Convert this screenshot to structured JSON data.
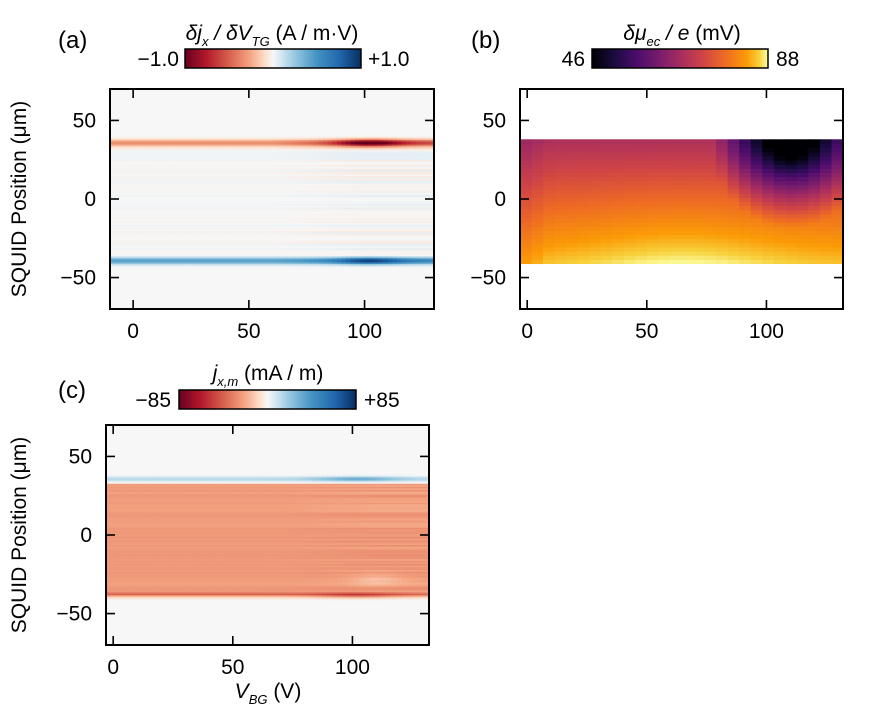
{
  "colors": {
    "div_neg": "#67001f",
    "div_mid": "#f7f7f7",
    "div_pos": "#053061",
    "inferno_low": "#000004",
    "inferno_high": "#fcffa4",
    "frame": "#000000"
  },
  "shared": {
    "ylabel": "SQUID Position (μm)",
    "xlabel_main": "V",
    "xlabel_sub": "BG",
    "xlabel_unit": " (V)"
  },
  "chart_data": [
    {
      "id": "a",
      "type": "heatmap",
      "panel_label": "(a)",
      "title_parts": [
        "δj",
        "x",
        " / δV",
        "TG",
        " (A / m·V)"
      ],
      "colorbar": {
        "min_label": "−1.0",
        "max_label": "+1.0",
        "min": -1.0,
        "max": 1.0,
        "cmap": "RdBu"
      },
      "xlim": [
        -10,
        130
      ],
      "ylim": [
        -70,
        70
      ],
      "xticks": [
        {
          "v": 0,
          "label": "0"
        },
        {
          "v": 50,
          "label": "50"
        },
        {
          "v": 100,
          "label": "100"
        }
      ],
      "yticks": [
        {
          "v": 50,
          "label": "50"
        },
        {
          "v": 0,
          "label": "0"
        },
        {
          "v": -50,
          "label": "−50"
        }
      ],
      "xlabel": "",
      "ylabel": "SQUID Position (μm)",
      "data_x_range": [
        -10,
        130
      ],
      "data_y_range": [
        -70,
        70
      ],
      "features": [
        {
          "y": 36,
          "sign": -1,
          "amplitude": [
            0.35,
            0.9
          ],
          "peak_x": 102,
          "desc": "top edge current"
        },
        {
          "y": -39,
          "sign": 1,
          "amplitude": [
            0.45,
            0.85
          ],
          "peak_x": 102,
          "desc": "bottom edge current"
        }
      ]
    },
    {
      "id": "b",
      "type": "heatmap",
      "panel_label": "(b)",
      "title_parts": [
        "δμ",
        "ec",
        " / e",
        "",
        " (mV)"
      ],
      "colorbar": {
        "min_label": "46",
        "max_label": "88",
        "min": 46,
        "max": 88,
        "cmap": "inferno"
      },
      "xlim": [
        -3,
        132
      ],
      "ylim": [
        -70,
        70
      ],
      "xticks": [
        {
          "v": 0,
          "label": "0"
        },
        {
          "v": 50,
          "label": "50"
        },
        {
          "v": 100,
          "label": "100"
        }
      ],
      "yticks": [
        {
          "v": 50,
          "label": "50"
        },
        {
          "v": 0,
          "label": "0"
        },
        {
          "v": -50,
          "label": "−50"
        }
      ],
      "xlabel": "",
      "ylabel": "",
      "data_x_range": [
        -3,
        132
      ],
      "data_y_range": [
        -41,
        38
      ],
      "features": [
        {
          "desc": "minimum near top edge",
          "x": 110,
          "y": 36,
          "value": 46
        },
        {
          "desc": "maximum near bottom edge",
          "x": 65,
          "y": -38,
          "value": 88
        }
      ]
    },
    {
      "id": "c",
      "type": "heatmap",
      "panel_label": "(c)",
      "title_parts": [
        "j",
        "x,m",
        " (mA / m)",
        "",
        ""
      ],
      "colorbar": {
        "min_label": "−85",
        "max_label": "+85",
        "min": -85,
        "max": 85,
        "cmap": "RdBu"
      },
      "xlim": [
        -3,
        132
      ],
      "ylim": [
        -70,
        70
      ],
      "xticks": [
        {
          "v": 0,
          "label": "0"
        },
        {
          "v": 50,
          "label": "50"
        },
        {
          "v": 100,
          "label": "100"
        }
      ],
      "yticks": [
        {
          "v": 50,
          "label": "50"
        },
        {
          "v": 0,
          "label": "0"
        },
        {
          "v": -50,
          "label": "−50"
        }
      ],
      "xlabel": "V_BG (V)",
      "ylabel": "SQUID Position (μm)",
      "data_x_range": [
        -3,
        132
      ],
      "data_y_range": [
        -70,
        70
      ],
      "features": [
        {
          "y": 36,
          "value": 25,
          "desc": "thin positive line at top edge"
        },
        {
          "y_range": [
            -38,
            33
          ],
          "value": -25,
          "desc": "uniform negative current band"
        },
        {
          "y": -38,
          "value": -45,
          "desc": "stronger negative at bottom edge"
        }
      ]
    }
  ]
}
